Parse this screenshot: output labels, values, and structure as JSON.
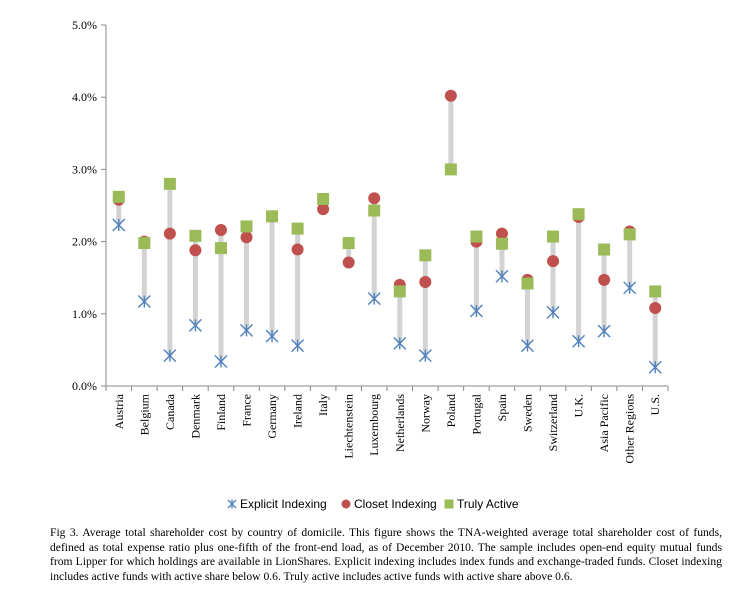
{
  "chart_data": {
    "type": "scatter",
    "title": "",
    "xlabel": "",
    "ylabel": "",
    "ylim": [
      0,
      5
    ],
    "yticks": [
      "0.0%",
      "1.0%",
      "2.0%",
      "3.0%",
      "4.0%",
      "5.0%"
    ],
    "ytick_values": [
      0,
      1,
      2,
      3,
      4,
      5
    ],
    "grid": false,
    "legend": "bottom",
    "categories": [
      "Austria",
      "Belgium",
      "Canada",
      "Denmark",
      "Finland",
      "France",
      "Germany",
      "Ireland",
      "Italy",
      "Liechtenstein",
      "Luxembourg",
      "Netherlands",
      "Norway",
      "Poland",
      "Portugal",
      "Spain",
      "Sweden",
      "Switzerland",
      "U.K.",
      "Asia Pacific",
      "Other Regions",
      "U.S."
    ],
    "series": [
      {
        "name": "Explicit Indexing",
        "marker": "asterisk",
        "color": "#4f81bd",
        "values": [
          2.23,
          1.17,
          0.42,
          0.84,
          0.34,
          0.77,
          0.69,
          0.56,
          null,
          null,
          1.21,
          0.59,
          0.42,
          null,
          1.04,
          1.52,
          0.56,
          1.02,
          0.62,
          0.76,
          1.36,
          0.26
        ]
      },
      {
        "name": "Closet Indexing",
        "marker": "circle",
        "color": "#c0504d",
        "values": [
          2.58,
          2.0,
          2.11,
          1.88,
          2.16,
          2.06,
          2.35,
          1.89,
          2.45,
          1.71,
          2.6,
          1.4,
          1.44,
          4.02,
          2.0,
          2.11,
          1.47,
          1.73,
          2.34,
          1.47,
          2.14,
          1.08
        ]
      },
      {
        "name": "Truly Active",
        "marker": "square",
        "color": "#9bbb59",
        "values": [
          2.62,
          1.98,
          2.8,
          2.08,
          1.91,
          2.21,
          2.35,
          2.18,
          2.59,
          1.98,
          2.43,
          1.31,
          1.81,
          3.0,
          2.07,
          1.97,
          1.42,
          2.07,
          2.38,
          1.89,
          2.1,
          1.31
        ]
      }
    ]
  },
  "caption": "Fig 3. Average total shareholder cost by country of domicile. This figure shows the TNA-weighted average total shareholder cost of funds, defined as total expense ratio plus one-fifth of the front-end load, as of December 2010. The sample includes open-end equity mutual funds from Lipper for which holdings are available in LionShares. Explicit indexing includes index funds and exchange-traded funds. Closet indexing includes active funds with active share below 0.6. Truly active includes active funds with active share above 0.6."
}
